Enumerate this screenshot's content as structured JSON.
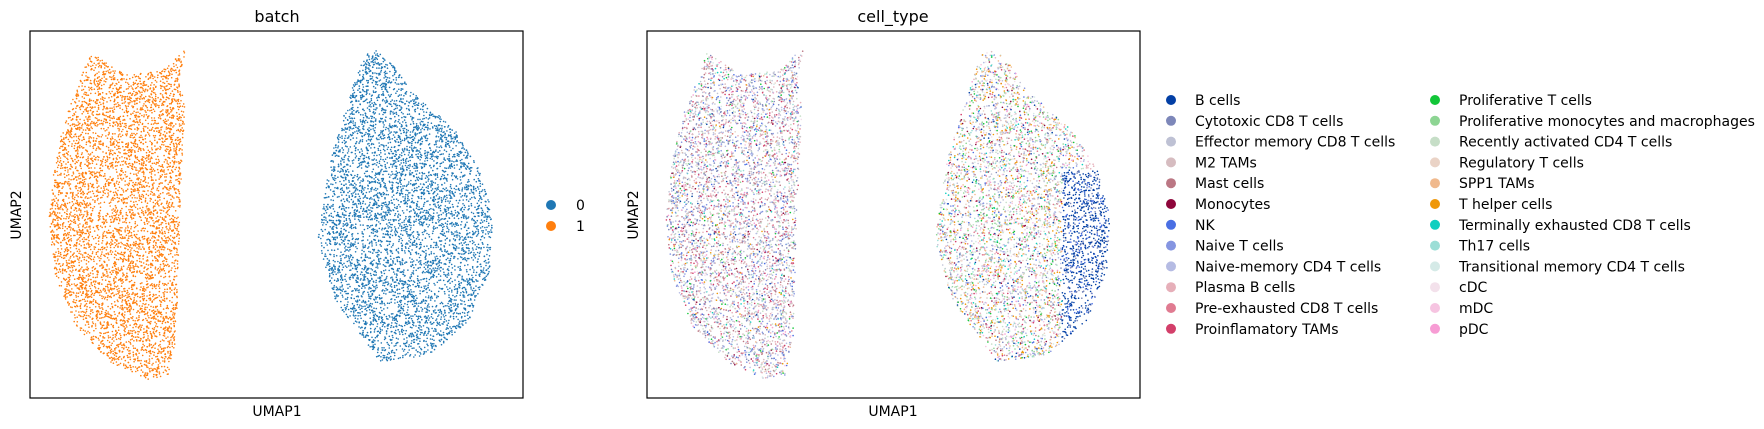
{
  "chart_data": [
    {
      "type": "scatter",
      "title": "batch",
      "xlabel": "UMAP1",
      "ylabel": "UMAP2",
      "xticks": [],
      "yticks": [],
      "legend_position": "right",
      "legend": [
        {
          "label": "0",
          "color": "#1f77b4"
        },
        {
          "label": "1",
          "color": "#ff7f0e"
        }
      ],
      "clusters": [
        {
          "label": "1",
          "color": "#ff7f0e",
          "region": "left lobe"
        },
        {
          "label": "0",
          "color": "#1f77b4",
          "region": "right lobe"
        }
      ]
    },
    {
      "type": "scatter",
      "title": "cell_type",
      "xlabel": "UMAP1",
      "ylabel": "UMAP2",
      "xticks": [],
      "yticks": [],
      "legend_position": "right",
      "legend": [
        {
          "label": "B cells",
          "color": "#023fa5"
        },
        {
          "label": "Cytotoxic CD8 T cells",
          "color": "#7d87b9"
        },
        {
          "label": "Effector memory CD8 T cells",
          "color": "#bec1d4"
        },
        {
          "label": "M2 TAMs",
          "color": "#d6bcc0"
        },
        {
          "label": "Mast cells",
          "color": "#bb7784"
        },
        {
          "label": "Monocytes",
          "color": "#8e063b"
        },
        {
          "label": "NK",
          "color": "#4a6fe3"
        },
        {
          "label": "Naive T cells",
          "color": "#8595e1"
        },
        {
          "label": "Naive-memory CD4 T cells",
          "color": "#b5bbe3"
        },
        {
          "label": "Plasma B cells",
          "color": "#e6afb9"
        },
        {
          "label": "Pre-exhausted CD8 T cells",
          "color": "#e07b91"
        },
        {
          "label": "Proinflamatory TAMs",
          "color": "#d33f6a"
        },
        {
          "label": "Proliferative T cells",
          "color": "#11c638"
        },
        {
          "label": "Proliferative monocytes and macrophages",
          "color": "#8dd593"
        },
        {
          "label": "Recently activated CD4 T cells",
          "color": "#c6dec7"
        },
        {
          "label": "Regulatory T cells",
          "color": "#ead3c6"
        },
        {
          "label": "SPP1 TAMs",
          "color": "#f0b98d"
        },
        {
          "label": "T helper cells",
          "color": "#ef9708"
        },
        {
          "label": "Terminally exhausted CD8 T cells",
          "color": "#0fcfc0"
        },
        {
          "label": "Th17 cells",
          "color": "#9cded6"
        },
        {
          "label": "Transitional memory CD4 T cells",
          "color": "#d5eae7"
        },
        {
          "label": "cDC",
          "color": "#f3e1eb"
        },
        {
          "label": "mDC",
          "color": "#f6c4e1"
        },
        {
          "label": "pDC",
          "color": "#f79cd4"
        }
      ]
    }
  ]
}
